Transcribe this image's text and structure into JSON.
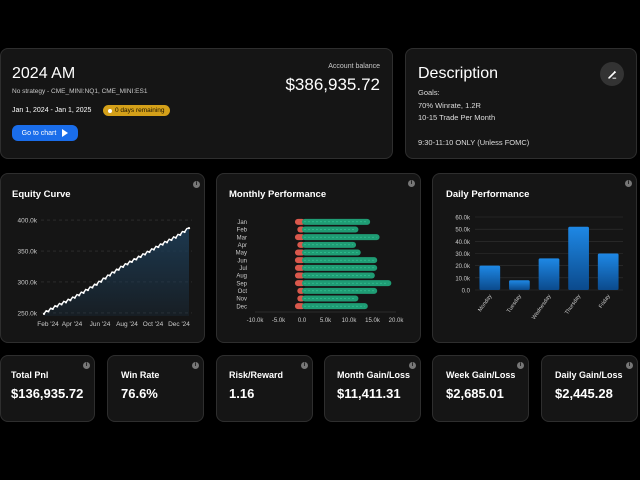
{
  "account": {
    "title": "2024 AM",
    "strategy": "No strategy - CME_MINI:NQ1, CME_MINI:ES1",
    "date_range": "Jan 1, 2024 - Jan 1, 2025",
    "days_badge": "0 days remaining",
    "balance_label": "Account balance",
    "balance_value": "$386,935.72",
    "chart_button": "Go to chart",
    "badge_color": "#d4a019",
    "button_color": "#1a6dea"
  },
  "description": {
    "title": "Description",
    "lines": [
      "Goals:",
      "70% Winrate, 1.2R",
      "10-15 Trade Per Month",
      "",
      "9:30-11:10 ONLY (Unless FOMC)"
    ],
    "edit_icon": "pencil-icon"
  },
  "panels": {
    "equity_title": "Equity Curve",
    "monthly_title": "Monthly Performance",
    "daily_title": "Daily Performance"
  },
  "chart_data": [
    {
      "type": "line",
      "title": "Equity Curve",
      "x_ticks": [
        "Feb '24",
        "Apr '24",
        "Jun '24",
        "Aug '24",
        "Oct '24",
        "Dec '24"
      ],
      "y_ticks": [
        "400.0k",
        "350.0k",
        "300.0k",
        "250.0k"
      ],
      "ylim": [
        245000,
        405000
      ],
      "series": [
        {
          "x": [
            "Jan",
            "Feb",
            "Mar",
            "Apr",
            "May",
            "Jun",
            "Jul",
            "Aug",
            "Sep",
            "Oct",
            "Nov",
            "Dec"
          ],
          "values": [
            250000,
            262000,
            272000,
            284000,
            297000,
            312000,
            326000,
            338000,
            350000,
            362000,
            373000,
            387000
          ]
        }
      ],
      "line_color": "#ffffff",
      "fill_color": "#1d3a52"
    },
    {
      "type": "bar",
      "title": "Monthly Performance",
      "orientation": "horizontal",
      "categories": [
        "Jan",
        "Feb",
        "Mar",
        "Apr",
        "May",
        "Jun",
        "Jul",
        "Aug",
        "Sep",
        "Oct",
        "Nov",
        "Dec"
      ],
      "series": [
        {
          "values": [
            -1500,
            -1000,
            -1500,
            -1000,
            -1500,
            -1500,
            -1500,
            -1500,
            -1500,
            -1000,
            -1000,
            -1500
          ]
        },
        {
          "values": [
            14500,
            12000,
            16500,
            11500,
            12500,
            16000,
            16000,
            15500,
            19000,
            16000,
            12000,
            14000
          ]
        }
      ],
      "x_ticks": [
        "-10.0k",
        "-5.0k",
        "0.0",
        "5.0k",
        "10.0k",
        "15.0k",
        "20.0k"
      ],
      "xlim": [
        -10000,
        20000
      ],
      "colors": [
        "#d9584c",
        "#1f9c74"
      ]
    },
    {
      "type": "bar",
      "title": "Daily Performance",
      "categories": [
        "Monday",
        "Tuesday",
        "Wednesday",
        "Thursday",
        "Friday"
      ],
      "values": [
        20000,
        8000,
        26000,
        52000,
        30000
      ],
      "y_ticks": [
        "60.0k",
        "50.0k",
        "40.0k",
        "30.0k",
        "20.0k",
        "10.0k",
        "0.0"
      ],
      "ylim": [
        0,
        60000
      ],
      "color": "#1e88e5"
    }
  ],
  "stats": [
    {
      "label": "Total Pnl",
      "value": "$136,935.72"
    },
    {
      "label": "Win Rate",
      "value": "76.6%"
    },
    {
      "label": "Risk/Reward",
      "value": "1.16"
    },
    {
      "label": "Month Gain/Loss",
      "value": "$11,411.31"
    },
    {
      "label": "Week Gain/Loss",
      "value": "$2,685.01"
    },
    {
      "label": "Daily Gain/Loss",
      "value": "$2,445.28"
    }
  ]
}
